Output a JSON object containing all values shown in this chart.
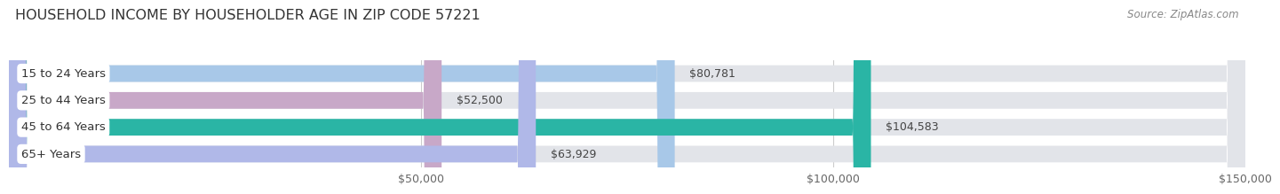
{
  "title": "HOUSEHOLD INCOME BY HOUSEHOLDER AGE IN ZIP CODE 57221",
  "source": "Source: ZipAtlas.com",
  "categories": [
    "15 to 24 Years",
    "25 to 44 Years",
    "45 to 64 Years",
    "65+ Years"
  ],
  "values": [
    80781,
    52500,
    104583,
    63929
  ],
  "bar_colors": [
    "#a8c8e8",
    "#c8a8c8",
    "#2ab5a5",
    "#b0b8e8"
  ],
  "bar_bg_color": "#e2e4e9",
  "fig_bg_color": "#ffffff",
  "row_gap_color": "#f8f8f8",
  "xlim": [
    0,
    150000
  ],
  "xtick_positions": [
    50000,
    100000,
    150000
  ],
  "xtick_labels": [
    "$50,000",
    "$100,000",
    "$150,000"
  ],
  "bar_height": 0.62,
  "title_fontsize": 11.5,
  "source_fontsize": 8.5,
  "value_fontsize": 9,
  "category_fontsize": 9.5
}
